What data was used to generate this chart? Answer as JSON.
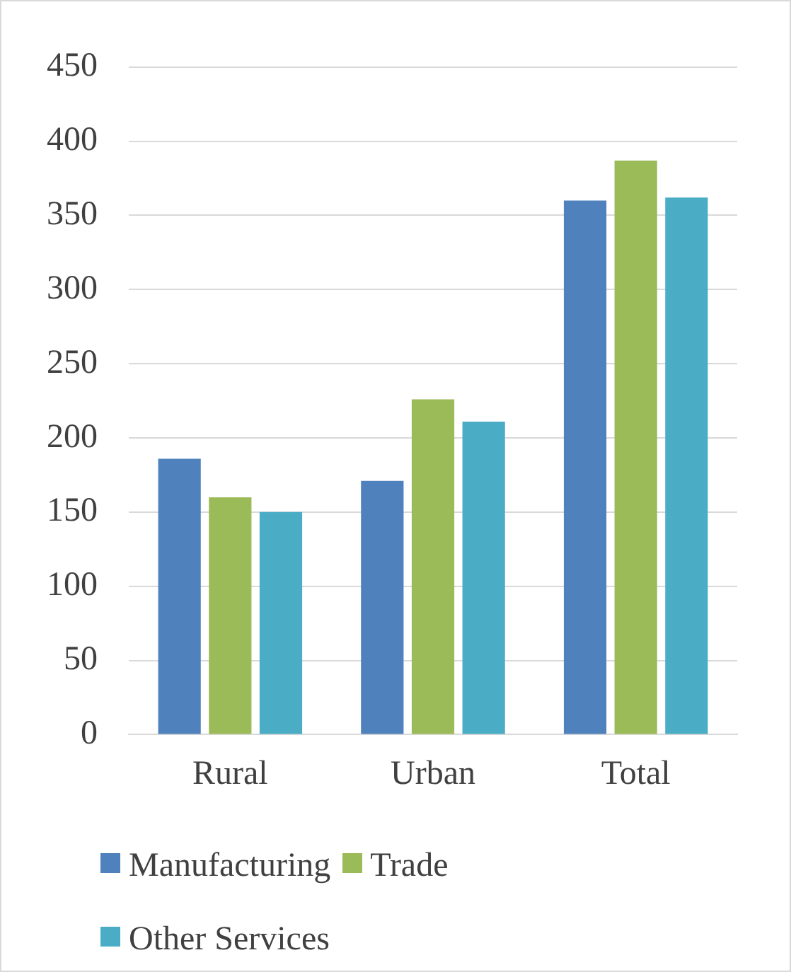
{
  "chart_data": {
    "type": "bar",
    "categories": [
      "Rural",
      "Urban",
      "Total"
    ],
    "series": [
      {
        "name": "Manufacturing",
        "color": "#4f81bd",
        "values": [
          186,
          171,
          360
        ]
      },
      {
        "name": "Trade",
        "color": "#9bbb59",
        "values": [
          160,
          226,
          387
        ]
      },
      {
        "name": "Other Services",
        "color": "#4bacc6",
        "values": [
          150,
          211,
          362
        ]
      }
    ],
    "ylim": [
      0,
      450
    ],
    "yticks": [
      0,
      50,
      100,
      150,
      200,
      250,
      300,
      350,
      400,
      450
    ],
    "grid": "y",
    "legend": "bottom"
  }
}
